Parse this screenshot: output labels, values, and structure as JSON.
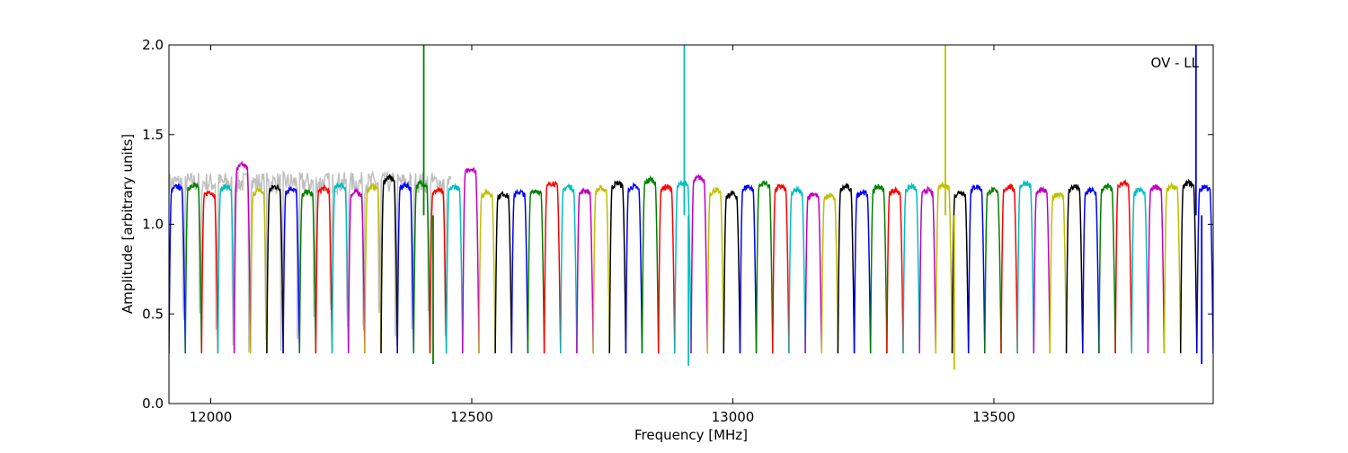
{
  "chart_data": {
    "type": "line",
    "title": "",
    "annotation": "OV - LL",
    "xlabel": "Frequency [MHz]",
    "ylabel": "Amplitude [arbitrary units]",
    "xlim": [
      11920,
      13920
    ],
    "ylim": [
      0.0,
      2.0
    ],
    "xticks": [
      12000,
      12500,
      13000,
      13500
    ],
    "xtick_labels": [
      "12000",
      "12500",
      "13000",
      "13500"
    ],
    "yticks": [
      0.0,
      0.5,
      1.0,
      1.5,
      2.0
    ],
    "ytick_labels": [
      "0.0",
      "0.5",
      "1.0",
      "1.5",
      "2.0"
    ],
    "grid": false,
    "background_series": {
      "color": "#bfbfbf",
      "x_range": [
        11920,
        12460
      ],
      "level": 1.22
    },
    "channel_width_mhz": 31.25,
    "first_channel_start": 11920,
    "channel_count": 64,
    "channel_colors": [
      "#0000ff",
      "#008000",
      "#ff0000",
      "#00bfbf",
      "#bf00bf",
      "#bfbf00",
      "#000000"
    ],
    "channel_levels": [
      1.2,
      1.21,
      1.17,
      1.2,
      1.32,
      1.18,
      1.2,
      1.19,
      1.17,
      1.19,
      1.21,
      1.17,
      1.2,
      1.25,
      1.21,
      1.22,
      1.18,
      1.2,
      1.3,
      1.17,
      1.16,
      1.17,
      1.18,
      1.22,
      1.2,
      1.18,
      1.19,
      1.22,
      1.2,
      1.24,
      1.2,
      1.22,
      1.25,
      1.18,
      1.16,
      1.2,
      1.22,
      1.2,
      1.18,
      1.16,
      1.15,
      1.2,
      1.17,
      1.2,
      1.18,
      1.2,
      1.18,
      1.21,
      1.17,
      1.2,
      1.18,
      1.2,
      1.22,
      1.18,
      1.16,
      1.2,
      1.18,
      1.2,
      1.22,
      1.18,
      1.2,
      1.2,
      1.22,
      1.2
    ],
    "channel_dip_min": 0.28,
    "spikes": [
      {
        "x": 12408,
        "value": 2.0,
        "color": "#008000"
      },
      {
        "x": 12426,
        "value": 0.22,
        "color": "#008000"
      },
      {
        "x": 12907,
        "value": 2.0,
        "color": "#00bfbf"
      },
      {
        "x": 12915,
        "value": 0.21,
        "color": "#00bfbf"
      },
      {
        "x": 13407,
        "value": 2.0,
        "color": "#bfbf00"
      },
      {
        "x": 13424,
        "value": 0.19,
        "color": "#bfbf00"
      },
      {
        "x": 13887,
        "value": 2.0,
        "color": "#0000ff"
      },
      {
        "x": 13898,
        "value": 0.22,
        "color": "#0000ff"
      }
    ]
  }
}
